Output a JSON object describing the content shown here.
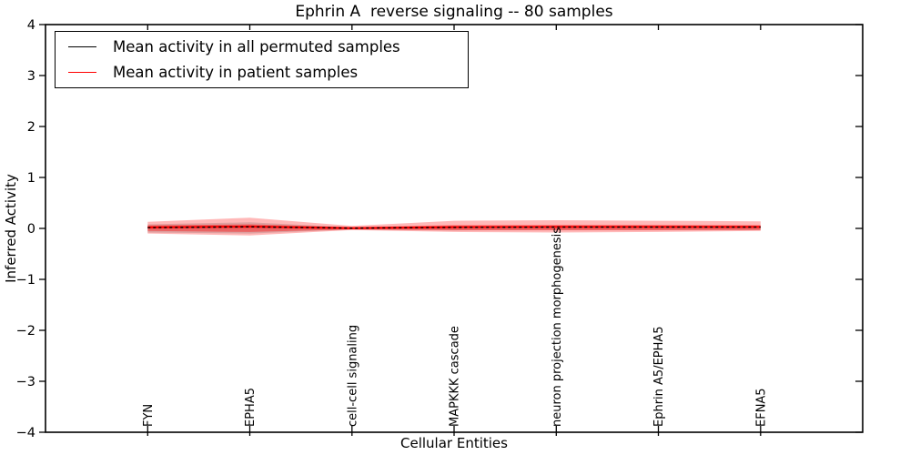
{
  "figure": {
    "title": "Ephrin A  reverse signaling -- 80 samples",
    "xlabel": "Cellular Entities",
    "ylabel": "Inferred Activity"
  },
  "legend": {
    "position": "upper left",
    "entries": [
      {
        "label": "Mean activity in all permuted samples",
        "color": "#000000"
      },
      {
        "label": "Mean activity in patient samples",
        "color": "#ff0000"
      }
    ]
  },
  "colors": {
    "axis": "#000000",
    "patient_line": "#ff0000",
    "permuted_line": "#000000",
    "patient_band_outer": "rgba(255,0,0,0.28)",
    "patient_band_inner": "rgba(255,0,0,0.38)",
    "permuted_band": "rgba(0,0,0,0.13)",
    "background": "#ffffff"
  },
  "chart_data": {
    "type": "line",
    "title": "Ephrin A  reverse signaling -- 80 samples",
    "xlabel": "Cellular Entities",
    "ylabel": "Inferred Activity",
    "xlim": [
      -1,
      7
    ],
    "ylim": [
      -4,
      4
    ],
    "grid": false,
    "legend_position": "upper left",
    "yticks": [
      4,
      3,
      2,
      1,
      0,
      -1,
      -2,
      -3,
      -4
    ],
    "ytick_labels": [
      "4",
      "3",
      "2",
      "1",
      "0",
      "−1",
      "−2",
      "−3",
      "−4"
    ],
    "categories": [
      "FYN",
      "EPHA5",
      "cell-cell signaling",
      "MAPKKK cascade",
      "neuron projection morphogenesis",
      "Ephrin A5/EPHA5",
      "EFNA5"
    ],
    "series": [
      {
        "name": "Mean activity in all permuted samples",
        "color": "#000000",
        "style": "dashed",
        "values": [
          0.015,
          0.03,
          0.005,
          0.02,
          0.025,
          0.025,
          0.025
        ],
        "band_upper": [
          0.08,
          0.12,
          0.02,
          0.05,
          0.04,
          0.04,
          0.04
        ],
        "band_lower": [
          -0.08,
          -0.1,
          -0.02,
          -0.04,
          -0.03,
          -0.03,
          -0.03
        ]
      },
      {
        "name": "Mean activity in patient samples",
        "color": "#ff0000",
        "style": "solid",
        "values": [
          0.02,
          0.035,
          0.005,
          0.025,
          0.03,
          0.03,
          0.03
        ],
        "band_upper": [
          0.13,
          0.21,
          0.05,
          0.15,
          0.16,
          0.15,
          0.14
        ],
        "band_lower": [
          -0.1,
          -0.14,
          -0.03,
          -0.07,
          -0.08,
          -0.07,
          -0.05
        ],
        "band_inner_upper": [
          0.06,
          0.08,
          0.025,
          0.065,
          0.07,
          0.07,
          0.065
        ],
        "band_inner_lower": [
          -0.05,
          -0.07,
          -0.02,
          -0.035,
          -0.035,
          -0.035,
          -0.03
        ]
      }
    ]
  }
}
